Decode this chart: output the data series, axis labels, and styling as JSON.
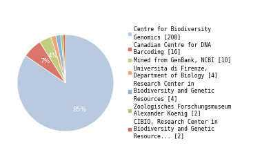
{
  "labels": [
    "Centre for Biodiversity\nGenomics [208]",
    "Canadian Centre for DNA\nBarcoding [16]",
    "Mined from GenBank, NCBI [10]",
    "Universita di Firenze,\nDepartment of Biology [4]",
    "Research Center in\nBiodiversity and Genetic\nResources [4]",
    "Zoologisches Forschungsmuseum\nAlexander Koenig [2]",
    "CIBIO, Research Center in\nBiodiversity and Genetic\nResource... [2]"
  ],
  "values": [
    208,
    16,
    10,
    4,
    4,
    2,
    2
  ],
  "colors": [
    "#b8c9e0",
    "#d9756a",
    "#c5cc80",
    "#e8a87c",
    "#8fb3d4",
    "#a8c87a",
    "#c97060"
  ],
  "text_color": "white",
  "background_color": "#ffffff",
  "fontsize": 6.5,
  "legend_fontsize": 5.8
}
